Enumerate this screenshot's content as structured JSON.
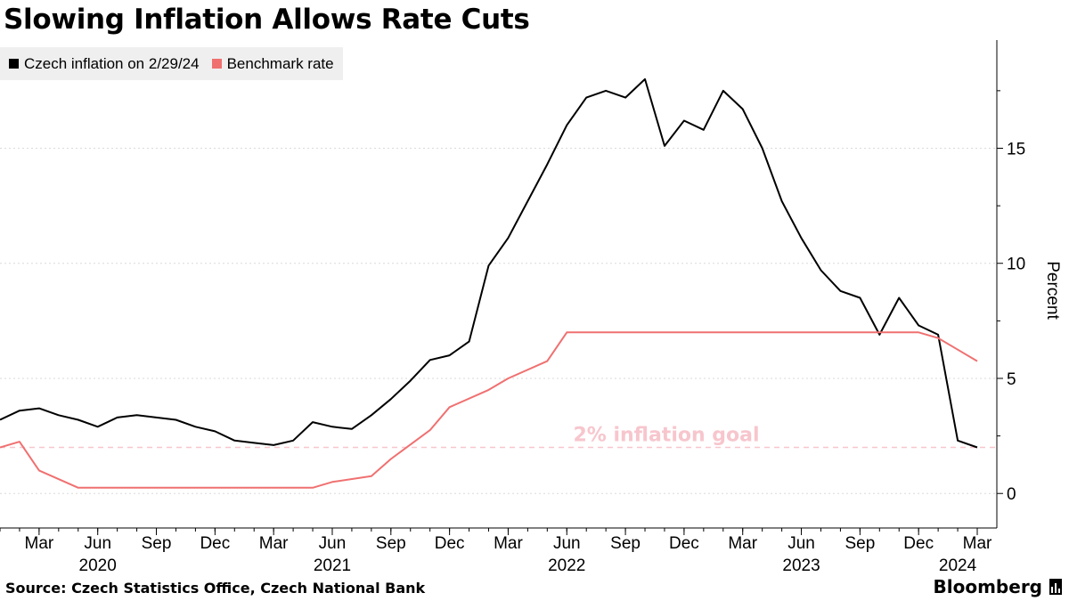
{
  "chart_data": {
    "type": "line",
    "title": "Slowing Inflation Allows Rate Cuts",
    "ylabel": "Percent",
    "xlabel": "",
    "ylim": [
      -1.5,
      19.7
    ],
    "xlim": [
      "2020-01",
      "2024-03"
    ],
    "yticks": [
      0,
      5,
      10,
      15
    ],
    "ytick_labels": [
      "0",
      "5",
      "10",
      "15"
    ],
    "xticks": [
      {
        "month": "2020-03",
        "label": "Mar"
      },
      {
        "month": "2020-06",
        "label": "Jun"
      },
      {
        "month": "2020-09",
        "label": "Sep"
      },
      {
        "month": "2020-12",
        "label": "Dec"
      },
      {
        "month": "2021-03",
        "label": "Mar"
      },
      {
        "month": "2021-06",
        "label": "Jun"
      },
      {
        "month": "2021-09",
        "label": "Sep"
      },
      {
        "month": "2021-12",
        "label": "Dec"
      },
      {
        "month": "2022-03",
        "label": "Mar"
      },
      {
        "month": "2022-06",
        "label": "Jun"
      },
      {
        "month": "2022-09",
        "label": "Sep"
      },
      {
        "month": "2022-12",
        "label": "Dec"
      },
      {
        "month": "2023-03",
        "label": "Mar"
      },
      {
        "month": "2023-06",
        "label": "Jun"
      },
      {
        "month": "2023-09",
        "label": "Sep"
      },
      {
        "month": "2023-12",
        "label": "Dec"
      },
      {
        "month": "2024-03",
        "label": "Mar"
      }
    ],
    "year_labels": [
      {
        "month": "2020-06",
        "label": "2020"
      },
      {
        "month": "2021-06",
        "label": "2021"
      },
      {
        "month": "2022-06",
        "label": "2022"
      },
      {
        "month": "2023-06",
        "label": "2023"
      },
      {
        "month": "2024-02",
        "label": "2024"
      }
    ],
    "series": [
      {
        "name": "Czech inflation on 2/29/24",
        "color": "#000000",
        "points": [
          [
            "2020-01",
            3.2
          ],
          [
            "2020-02",
            3.6
          ],
          [
            "2020-03",
            3.7
          ],
          [
            "2020-04",
            3.4
          ],
          [
            "2020-05",
            3.2
          ],
          [
            "2020-06",
            2.9
          ],
          [
            "2020-07",
            3.3
          ],
          [
            "2020-08",
            3.4
          ],
          [
            "2020-09",
            3.3
          ],
          [
            "2020-10",
            3.2
          ],
          [
            "2020-11",
            2.9
          ],
          [
            "2020-12",
            2.7
          ],
          [
            "2021-01",
            2.3
          ],
          [
            "2021-02",
            2.2
          ],
          [
            "2021-03",
            2.1
          ],
          [
            "2021-04",
            2.3
          ],
          [
            "2021-05",
            3.1
          ],
          [
            "2021-06",
            2.9
          ],
          [
            "2021-07",
            2.8
          ],
          [
            "2021-08",
            3.4
          ],
          [
            "2021-09",
            4.1
          ],
          [
            "2021-10",
            4.9
          ],
          [
            "2021-11",
            5.8
          ],
          [
            "2021-12",
            6.0
          ],
          [
            "2022-01",
            6.6
          ],
          [
            "2022-02",
            9.9
          ],
          [
            "2022-03",
            11.1
          ],
          [
            "2022-04",
            12.7
          ],
          [
            "2022-05",
            14.3
          ],
          [
            "2022-06",
            16.0
          ],
          [
            "2022-07",
            17.2
          ],
          [
            "2022-08",
            17.5
          ],
          [
            "2022-09",
            17.2
          ],
          [
            "2022-10",
            18.0
          ],
          [
            "2022-11",
            15.1
          ],
          [
            "2022-12",
            16.2
          ],
          [
            "2023-01",
            15.8
          ],
          [
            "2023-02",
            17.5
          ],
          [
            "2023-03",
            16.7
          ],
          [
            "2023-04",
            15.0
          ],
          [
            "2023-05",
            12.7
          ],
          [
            "2023-06",
            11.1
          ],
          [
            "2023-07",
            9.7
          ],
          [
            "2023-08",
            8.8
          ],
          [
            "2023-09",
            8.5
          ],
          [
            "2023-10",
            6.9
          ],
          [
            "2023-11",
            8.5
          ],
          [
            "2023-12",
            7.3
          ],
          [
            "2024-01",
            6.9
          ],
          [
            "2024-02",
            2.3
          ],
          [
            "2024-03",
            2.0
          ]
        ]
      },
      {
        "name": "Benchmark rate",
        "color": "#f07070",
        "points": [
          [
            "2020-01",
            2.0
          ],
          [
            "2020-02",
            2.25
          ],
          [
            "2020-03",
            1.0
          ],
          [
            "2020-05",
            0.25
          ],
          [
            "2021-05",
            0.25
          ],
          [
            "2021-06",
            0.5
          ],
          [
            "2021-08",
            0.75
          ],
          [
            "2021-09",
            1.5
          ],
          [
            "2021-11",
            2.75
          ],
          [
            "2021-12",
            3.75
          ],
          [
            "2022-02",
            4.5
          ],
          [
            "2022-03",
            5.0
          ],
          [
            "2022-05",
            5.75
          ],
          [
            "2022-06",
            7.0
          ],
          [
            "2023-12",
            7.0
          ],
          [
            "2024-01",
            6.75
          ],
          [
            "2024-02",
            6.25
          ],
          [
            "2024-03",
            5.75
          ]
        ]
      }
    ],
    "reference_line": {
      "value": 2,
      "label": "2% inflation goal",
      "color": "#f7c6cd"
    }
  },
  "colors": {
    "inflation": "#000000",
    "benchmark": "#f07070",
    "goal": "#f7c6cd",
    "grid": "#dadada",
    "legend_bg": "#efefef"
  },
  "legend": {
    "items": [
      {
        "label": "Czech inflation on 2/29/24",
        "color": "#000000"
      },
      {
        "label": "Benchmark rate",
        "color": "#f07070"
      }
    ]
  },
  "source": "Source: Czech Statistics Office, Czech National Bank",
  "brand": "Bloomberg"
}
